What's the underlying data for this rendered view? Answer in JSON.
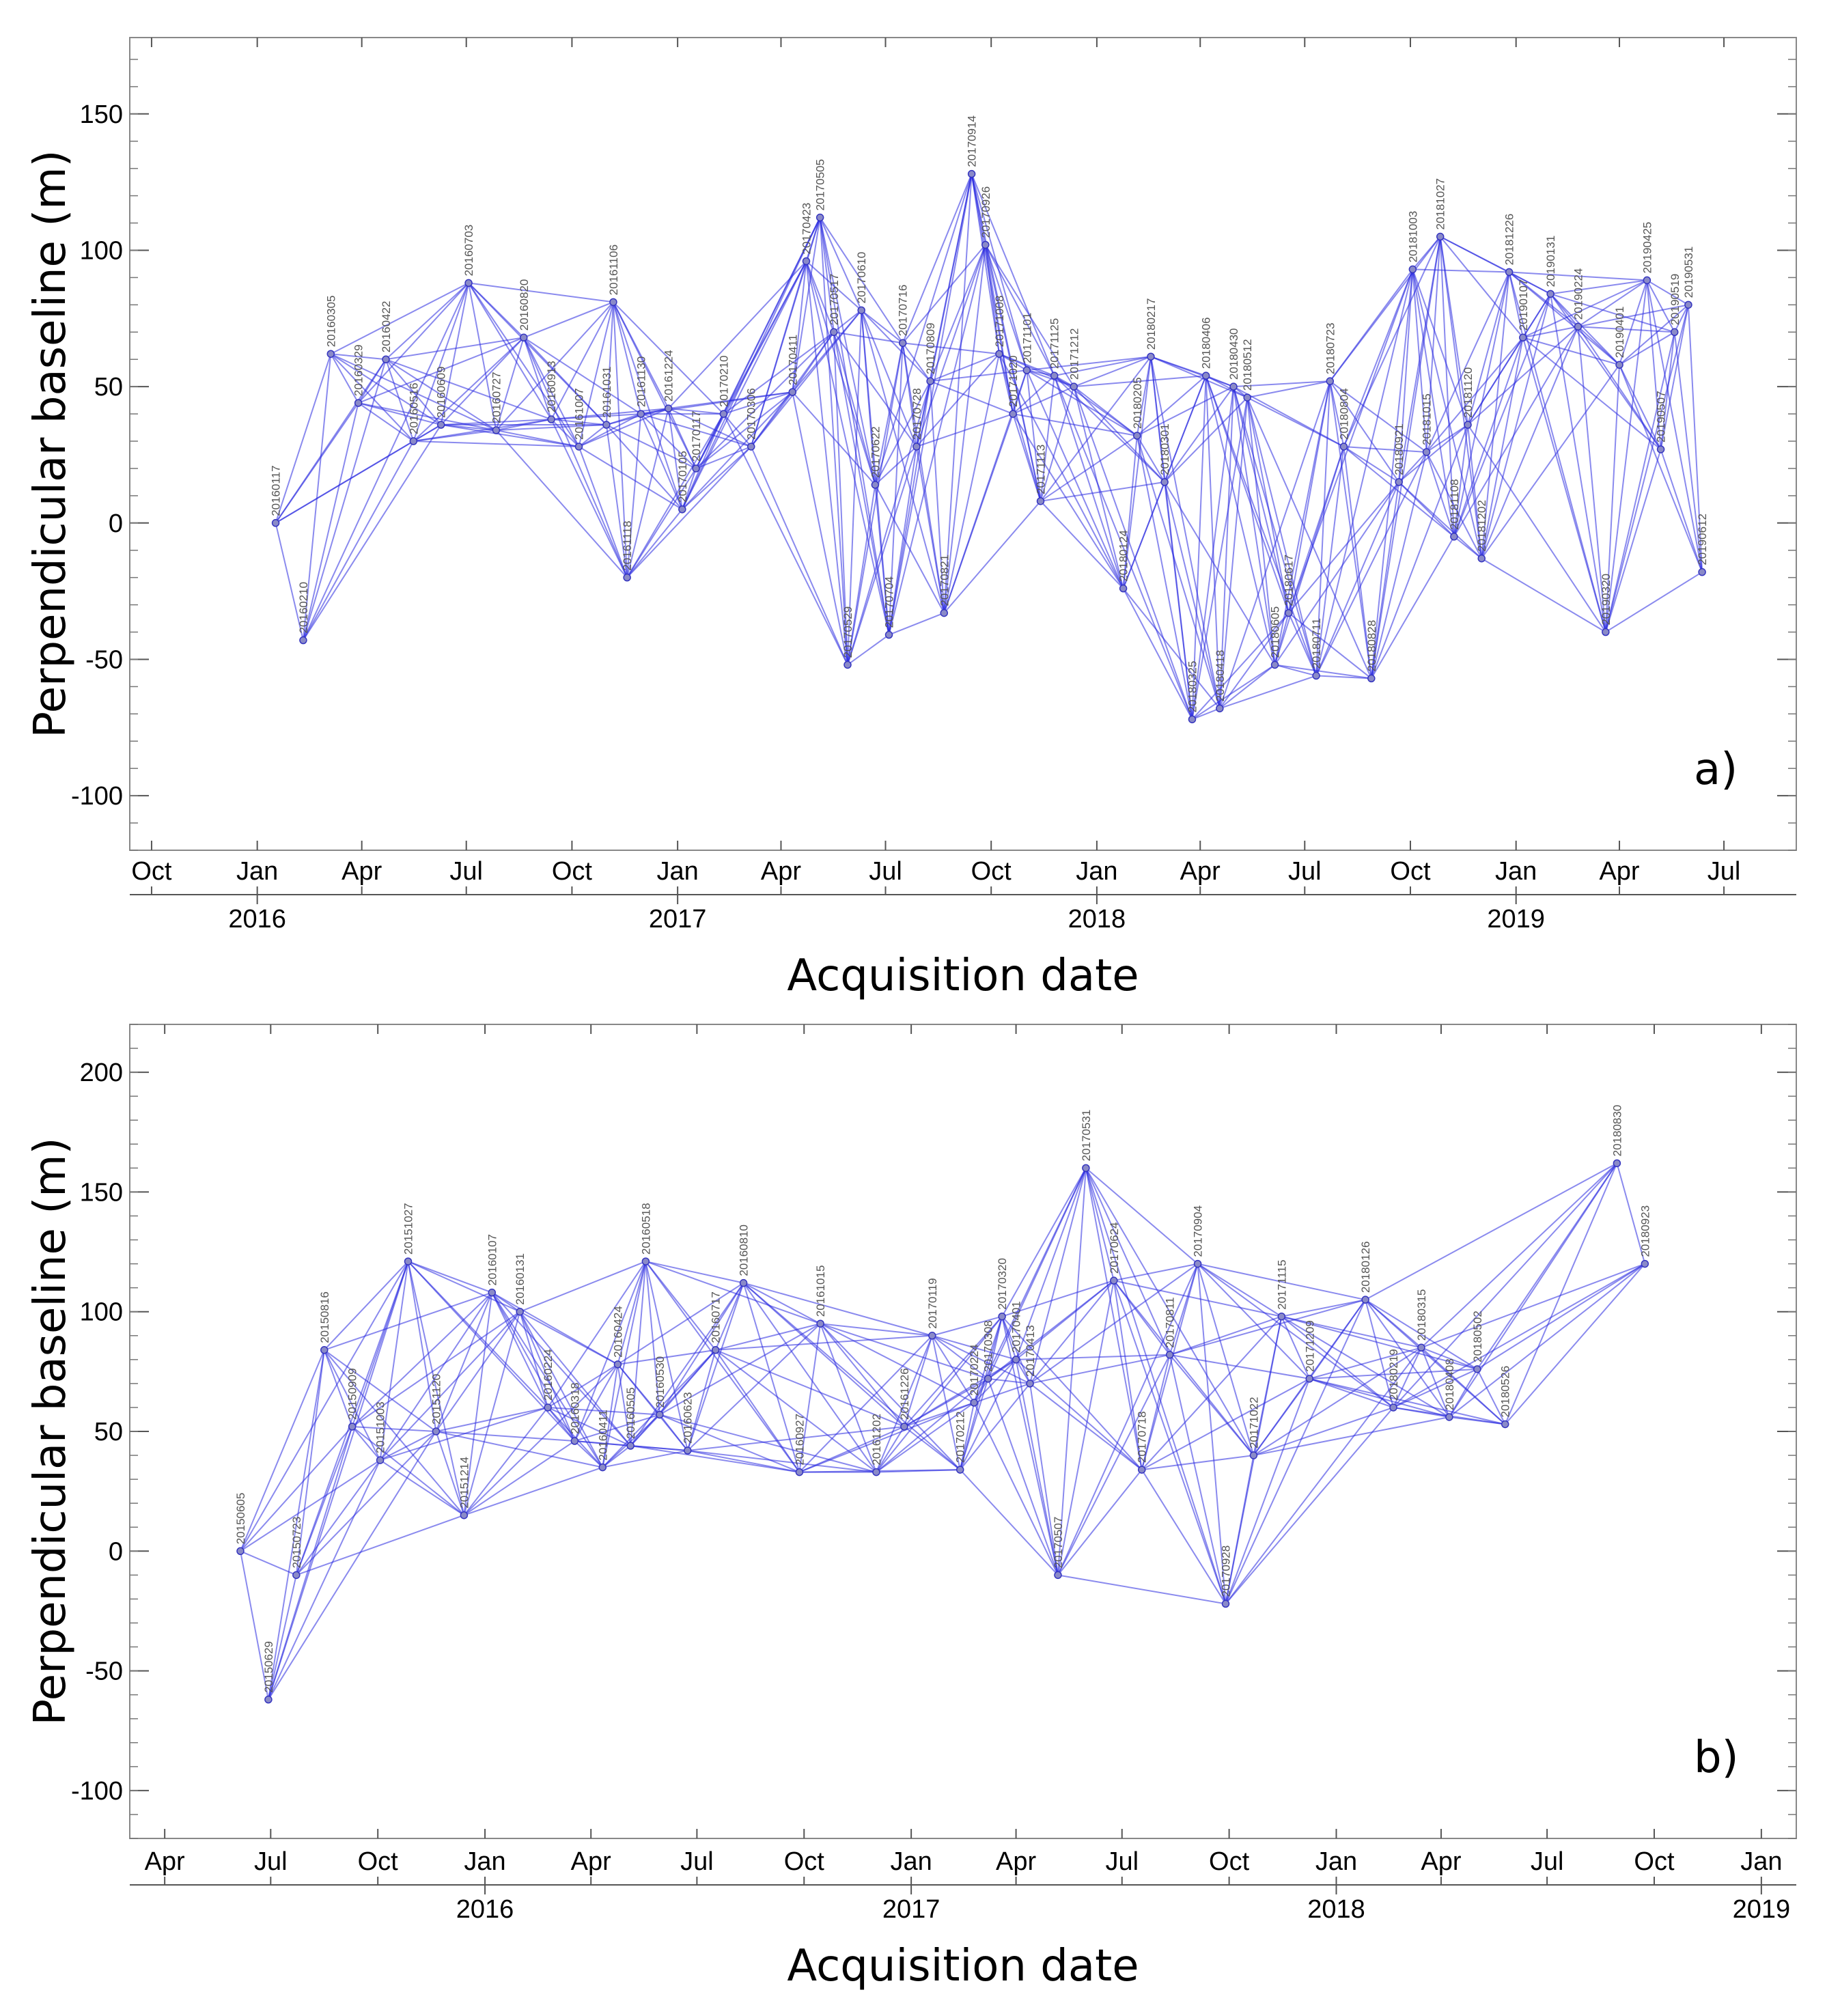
{
  "chart_data": [
    {
      "type": "scatter",
      "panel": "a)",
      "xlabel": "Acquisition date",
      "ylabel": "Perpendicular baseline (m)",
      "xlim": [
        "2015-09-12",
        "2019-09-02"
      ],
      "ylim": [
        -120,
        178
      ],
      "yticks": [
        150,
        100,
        50,
        0,
        -50,
        -100
      ],
      "month_ticks": [
        {
          "date": "2015-10-01",
          "label": "Oct"
        },
        {
          "date": "2016-01-01",
          "label": "Jan"
        },
        {
          "date": "2016-04-01",
          "label": "Apr"
        },
        {
          "date": "2016-07-01",
          "label": "Jul"
        },
        {
          "date": "2016-10-01",
          "label": "Oct"
        },
        {
          "date": "2017-01-01",
          "label": "Jan"
        },
        {
          "date": "2017-04-01",
          "label": "Apr"
        },
        {
          "date": "2017-07-01",
          "label": "Jul"
        },
        {
          "date": "2017-10-01",
          "label": "Oct"
        },
        {
          "date": "2018-01-01",
          "label": "Jan"
        },
        {
          "date": "2018-04-01",
          "label": "Apr"
        },
        {
          "date": "2018-07-01",
          "label": "Jul"
        },
        {
          "date": "2018-10-01",
          "label": "Oct"
        },
        {
          "date": "2019-01-01",
          "label": "Jan"
        },
        {
          "date": "2019-04-01",
          "label": "Apr"
        },
        {
          "date": "2019-07-01",
          "label": "Jul"
        }
      ],
      "year_ticks": [
        {
          "date": "2016-01-01",
          "label": "2016"
        },
        {
          "date": "2017-01-01",
          "label": "2017"
        },
        {
          "date": "2018-01-01",
          "label": "2018"
        },
        {
          "date": "2019-01-01",
          "label": "2019"
        }
      ],
      "points": [
        {
          "label": "20160117",
          "date": "2016-01-17",
          "bperp": 0
        },
        {
          "label": "20160210",
          "date": "2016-02-10",
          "bperp": -43
        },
        {
          "label": "20160305",
          "date": "2016-03-05",
          "bperp": 62
        },
        {
          "label": "20160329",
          "date": "2016-03-29",
          "bperp": 44
        },
        {
          "label": "20160422",
          "date": "2016-04-22",
          "bperp": 60
        },
        {
          "label": "20160516",
          "date": "2016-05-16",
          "bperp": 30
        },
        {
          "label": "20160609",
          "date": "2016-06-09",
          "bperp": 36
        },
        {
          "label": "20160703",
          "date": "2016-07-03",
          "bperp": 88
        },
        {
          "label": "20160727",
          "date": "2016-07-27",
          "bperp": 34
        },
        {
          "label": "20160820",
          "date": "2016-08-20",
          "bperp": 68
        },
        {
          "label": "20160913",
          "date": "2016-09-13",
          "bperp": 38
        },
        {
          "label": "20161007",
          "date": "2016-10-07",
          "bperp": 28
        },
        {
          "label": "20161031",
          "date": "2016-10-31",
          "bperp": 36
        },
        {
          "label": "20161106",
          "date": "2016-11-06",
          "bperp": 81
        },
        {
          "label": "20161118",
          "date": "2016-11-18",
          "bperp": -20
        },
        {
          "label": "20161130",
          "date": "2016-11-30",
          "bperp": 40
        },
        {
          "label": "20161224",
          "date": "2016-12-24",
          "bperp": 42
        },
        {
          "label": "20170105",
          "date": "2017-01-05",
          "bperp": 5
        },
        {
          "label": "20170117",
          "date": "2017-01-17",
          "bperp": 20
        },
        {
          "label": "20170210",
          "date": "2017-02-10",
          "bperp": 40
        },
        {
          "label": "20170306",
          "date": "2017-03-06",
          "bperp": 28
        },
        {
          "label": "20170411",
          "date": "2017-04-11",
          "bperp": 48
        },
        {
          "label": "20170423",
          "date": "2017-04-23",
          "bperp": 96
        },
        {
          "label": "20170505",
          "date": "2017-05-05",
          "bperp": 112
        },
        {
          "label": "20170517",
          "date": "2017-05-17",
          "bperp": 70
        },
        {
          "label": "20170529",
          "date": "2017-05-29",
          "bperp": -52
        },
        {
          "label": "20170610",
          "date": "2017-06-10",
          "bperp": 78
        },
        {
          "label": "20170622",
          "date": "2017-06-22",
          "bperp": 14
        },
        {
          "label": "20170704",
          "date": "2017-07-04",
          "bperp": -41
        },
        {
          "label": "20170716",
          "date": "2017-07-16",
          "bperp": 66
        },
        {
          "label": "20170728",
          "date": "2017-07-28",
          "bperp": 28
        },
        {
          "label": "20170809",
          "date": "2017-08-09",
          "bperp": 52
        },
        {
          "label": "20170821",
          "date": "2017-08-21",
          "bperp": -33
        },
        {
          "label": "20170914",
          "date": "2017-09-14",
          "bperp": 128
        },
        {
          "label": "20170926",
          "date": "2017-09-26",
          "bperp": 102
        },
        {
          "label": "20171008",
          "date": "2017-10-08",
          "bperp": 62
        },
        {
          "label": "20171020",
          "date": "2017-10-20",
          "bperp": 40
        },
        {
          "label": "20171101",
          "date": "2017-11-01",
          "bperp": 56
        },
        {
          "label": "20171113",
          "date": "2017-11-13",
          "bperp": 8
        },
        {
          "label": "20171125",
          "date": "2017-11-25",
          "bperp": 54
        },
        {
          "label": "20171212",
          "date": "2017-12-12",
          "bperp": 50
        },
        {
          "label": "20180124",
          "date": "2018-01-24",
          "bperp": -24
        },
        {
          "label": "20180205",
          "date": "2018-02-05",
          "bperp": 32
        },
        {
          "label": "20180217",
          "date": "2018-02-17",
          "bperp": 61
        },
        {
          "label": "20180301",
          "date": "2018-03-01",
          "bperp": 15
        },
        {
          "label": "20180325",
          "date": "2018-03-25",
          "bperp": -72
        },
        {
          "label": "20180406",
          "date": "2018-04-06",
          "bperp": 54
        },
        {
          "label": "20180418",
          "date": "2018-04-18",
          "bperp": -68
        },
        {
          "label": "20180430",
          "date": "2018-04-30",
          "bperp": 50
        },
        {
          "label": "20180512",
          "date": "2018-05-12",
          "bperp": 46
        },
        {
          "label": "20180605",
          "date": "2018-06-05",
          "bperp": -52
        },
        {
          "label": "20180617",
          "date": "2018-06-17",
          "bperp": -33
        },
        {
          "label": "20180711",
          "date": "2018-07-11",
          "bperp": -56
        },
        {
          "label": "20180723",
          "date": "2018-07-23",
          "bperp": 52
        },
        {
          "label": "20180804",
          "date": "2018-08-04",
          "bperp": 28
        },
        {
          "label": "20180828",
          "date": "2018-08-28",
          "bperp": -57
        },
        {
          "label": "20180921",
          "date": "2018-09-21",
          "bperp": 15
        },
        {
          "label": "20181003",
          "date": "2018-10-03",
          "bperp": 93
        },
        {
          "label": "20181015",
          "date": "2018-10-15",
          "bperp": 26
        },
        {
          "label": "20181027",
          "date": "2018-10-27",
          "bperp": 105
        },
        {
          "label": "20181108",
          "date": "2018-11-08",
          "bperp": -5
        },
        {
          "label": "20181120",
          "date": "2018-11-20",
          "bperp": 36
        },
        {
          "label": "20181202",
          "date": "2018-12-02",
          "bperp": -13
        },
        {
          "label": "20181226",
          "date": "2018-12-26",
          "bperp": 92
        },
        {
          "label": "20190107",
          "date": "2019-01-07",
          "bperp": 68
        },
        {
          "label": "20190131",
          "date": "2019-01-31",
          "bperp": 84
        },
        {
          "label": "20190224",
          "date": "2019-02-24",
          "bperp": 72
        },
        {
          "label": "20190320",
          "date": "2019-03-20",
          "bperp": -40
        },
        {
          "label": "20190401",
          "date": "2019-04-01",
          "bperp": 58
        },
        {
          "label": "20190425",
          "date": "2019-04-25",
          "bperp": 89
        },
        {
          "label": "20190507",
          "date": "2019-05-07",
          "bperp": 27
        },
        {
          "label": "20190519",
          "date": "2019-05-19",
          "bperp": 70
        },
        {
          "label": "20190531",
          "date": "2019-05-31",
          "bperp": 80
        },
        {
          "label": "20190612",
          "date": "2019-06-12",
          "bperp": -18
        }
      ]
    },
    {
      "type": "scatter",
      "panel": "b)",
      "xlabel": "Acquisition date",
      "ylabel": "Perpendicular baseline (m)",
      "xlim": [
        "2015-03-02",
        "2019-01-31"
      ],
      "ylim": [
        -120,
        220
      ],
      "yticks": [
        200,
        150,
        100,
        50,
        0,
        -50,
        -100
      ],
      "month_ticks": [
        {
          "date": "2015-04-01",
          "label": "Apr"
        },
        {
          "date": "2015-07-01",
          "label": "Jul"
        },
        {
          "date": "2015-10-01",
          "label": "Oct"
        },
        {
          "date": "2016-01-01",
          "label": "Jan"
        },
        {
          "date": "2016-04-01",
          "label": "Apr"
        },
        {
          "date": "2016-07-01",
          "label": "Jul"
        },
        {
          "date": "2016-10-01",
          "label": "Oct"
        },
        {
          "date": "2017-01-01",
          "label": "Jan"
        },
        {
          "date": "2017-04-01",
          "label": "Apr"
        },
        {
          "date": "2017-07-01",
          "label": "Jul"
        },
        {
          "date": "2017-10-01",
          "label": "Oct"
        },
        {
          "date": "2018-01-01",
          "label": "Jan"
        },
        {
          "date": "2018-04-01",
          "label": "Apr"
        },
        {
          "date": "2018-07-01",
          "label": "Jul"
        },
        {
          "date": "2018-10-01",
          "label": "Oct"
        },
        {
          "date": "2019-01-01",
          "label": "Jan"
        }
      ],
      "year_ticks": [
        {
          "date": "2016-01-01",
          "label": "2016"
        },
        {
          "date": "2017-01-01",
          "label": "2017"
        },
        {
          "date": "2018-01-01",
          "label": "2018"
        },
        {
          "date": "2019-01-01",
          "label": "2019"
        }
      ],
      "points": [
        {
          "label": "20150605",
          "date": "2015-06-05",
          "bperp": 0
        },
        {
          "label": "20150629",
          "date": "2015-06-29",
          "bperp": -62
        },
        {
          "label": "20150723",
          "date": "2015-07-23",
          "bperp": -10
        },
        {
          "label": "20150816",
          "date": "2015-08-16",
          "bperp": 84
        },
        {
          "label": "20150909",
          "date": "2015-09-09",
          "bperp": 52
        },
        {
          "label": "20151003",
          "date": "2015-10-03",
          "bperp": 38
        },
        {
          "label": "20151027",
          "date": "2015-10-27",
          "bperp": 121
        },
        {
          "label": "20151120",
          "date": "2015-11-20",
          "bperp": 50
        },
        {
          "label": "20151214",
          "date": "2015-12-14",
          "bperp": 15
        },
        {
          "label": "20160107",
          "date": "2016-01-07",
          "bperp": 108
        },
        {
          "label": "20160131",
          "date": "2016-01-31",
          "bperp": 100
        },
        {
          "label": "20160224",
          "date": "2016-02-24",
          "bperp": 60
        },
        {
          "label": "20160318",
          "date": "2016-03-18",
          "bperp": 46
        },
        {
          "label": "20160411",
          "date": "2016-04-11",
          "bperp": 35
        },
        {
          "label": "20160424",
          "date": "2016-04-24",
          "bperp": 78
        },
        {
          "label": "20160505",
          "date": "2016-05-05",
          "bperp": 44
        },
        {
          "label": "20160518",
          "date": "2016-05-18",
          "bperp": 121
        },
        {
          "label": "20160530",
          "date": "2016-05-30",
          "bperp": 57
        },
        {
          "label": "20160623",
          "date": "2016-06-23",
          "bperp": 42
        },
        {
          "label": "20160717",
          "date": "2016-07-17",
          "bperp": 84
        },
        {
          "label": "20160810",
          "date": "2016-08-10",
          "bperp": 112
        },
        {
          "label": "20160927",
          "date": "2016-09-27",
          "bperp": 33
        },
        {
          "label": "20161015",
          "date": "2016-10-15",
          "bperp": 95
        },
        {
          "label": "20161202",
          "date": "2016-12-02",
          "bperp": 33
        },
        {
          "label": "20161226",
          "date": "2016-12-26",
          "bperp": 52
        },
        {
          "label": "20170119",
          "date": "2017-01-19",
          "bperp": 90
        },
        {
          "label": "20170212",
          "date": "2017-02-12",
          "bperp": 34
        },
        {
          "label": "20170224",
          "date": "2017-02-24",
          "bperp": 62
        },
        {
          "label": "20170308",
          "date": "2017-03-08",
          "bperp": 72
        },
        {
          "label": "20170320",
          "date": "2017-03-20",
          "bperp": 98
        },
        {
          "label": "20170401",
          "date": "2017-04-01",
          "bperp": 80
        },
        {
          "label": "20170413",
          "date": "2017-04-13",
          "bperp": 70
        },
        {
          "label": "20170507",
          "date": "2017-05-07",
          "bperp": -10
        },
        {
          "label": "20170531",
          "date": "2017-05-31",
          "bperp": 160
        },
        {
          "label": "20170624",
          "date": "2017-06-24",
          "bperp": 113
        },
        {
          "label": "20170718",
          "date": "2017-07-18",
          "bperp": 34
        },
        {
          "label": "20170811",
          "date": "2017-08-11",
          "bperp": 82
        },
        {
          "label": "20170904",
          "date": "2017-09-04",
          "bperp": 120
        },
        {
          "label": "20170928",
          "date": "2017-09-28",
          "bperp": -22
        },
        {
          "label": "20171022",
          "date": "2017-10-22",
          "bperp": 40
        },
        {
          "label": "20171115",
          "date": "2017-11-15",
          "bperp": 98
        },
        {
          "label": "20171209",
          "date": "2017-12-09",
          "bperp": 72
        },
        {
          "label": "20180126",
          "date": "2018-01-26",
          "bperp": 105
        },
        {
          "label": "20180219",
          "date": "2018-02-19",
          "bperp": 60
        },
        {
          "label": "20180315",
          "date": "2018-03-15",
          "bperp": 85
        },
        {
          "label": "20180408",
          "date": "2018-04-08",
          "bperp": 56
        },
        {
          "label": "20180502",
          "date": "2018-05-02",
          "bperp": 76
        },
        {
          "label": "20180526",
          "date": "2018-05-26",
          "bperp": 53
        },
        {
          "label": "20180830",
          "date": "2018-08-30",
          "bperp": 162
        },
        {
          "label": "20180923",
          "date": "2018-09-23",
          "bperp": 120
        }
      ]
    }
  ]
}
